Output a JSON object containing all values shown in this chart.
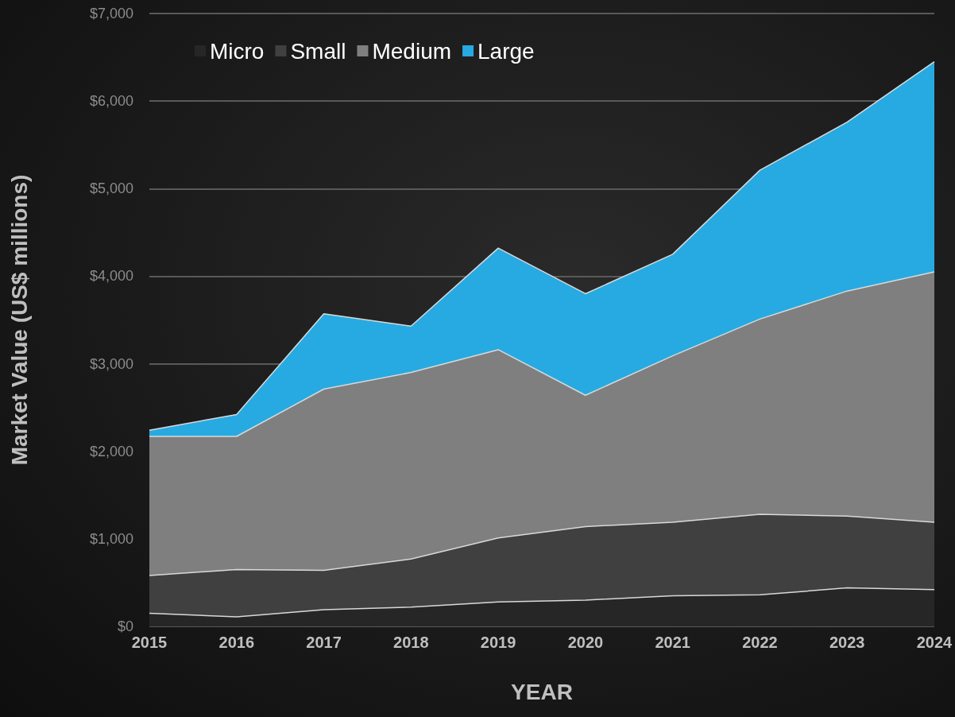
{
  "chart_data": {
    "type": "area",
    "stacked": true,
    "xlabel": "YEAR",
    "ylabel": "Market Value (US$ millions)",
    "categories": [
      "2015",
      "2016",
      "2017",
      "2018",
      "2019",
      "2020",
      "2021",
      "2022",
      "2023",
      "2024"
    ],
    "series": [
      {
        "name": "Micro",
        "color": "#262626",
        "values": [
          150,
          110,
          190,
          220,
          280,
          300,
          350,
          360,
          440,
          420
        ]
      },
      {
        "name": "Small",
        "color": "#404040",
        "values": [
          430,
          540,
          450,
          550,
          730,
          840,
          840,
          920,
          820,
          770
        ]
      },
      {
        "name": "Medium",
        "color": "#7f7f7f",
        "values": [
          1590,
          1520,
          2070,
          2130,
          2150,
          1500,
          1900,
          2230,
          2570,
          2860
        ]
      },
      {
        "name": "Large",
        "color": "#27aae1",
        "values": [
          70,
          250,
          860,
          530,
          1160,
          1160,
          1160,
          1700,
          1930,
          2400
        ]
      }
    ],
    "ylim": [
      0,
      7000
    ],
    "yticks": [
      {
        "value": 0,
        "label": "$0"
      },
      {
        "value": 1000,
        "label": "$1,000"
      },
      {
        "value": 2000,
        "label": "$2,000"
      },
      {
        "value": 3000,
        "label": "$3,000"
      },
      {
        "value": 4000,
        "label": "$4,000"
      },
      {
        "value": 5000,
        "label": "$5,000"
      },
      {
        "value": 6000,
        "label": "$6,000"
      },
      {
        "value": 7000,
        "label": "$7,000"
      }
    ],
    "grid": "y",
    "legend": "top left"
  }
}
